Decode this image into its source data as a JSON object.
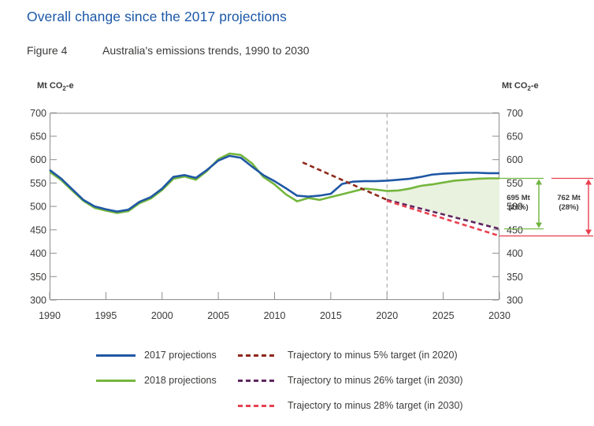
{
  "header": {
    "title": "Overall change since the 2017 projections",
    "figure_label": "Figure 4",
    "figure_title": "Australia's emissions trends, 1990 to 2030"
  },
  "axis_unit": {
    "prefix": "Mt CO",
    "sub": "2",
    "suffix": "-e"
  },
  "chart_data": {
    "type": "line",
    "title": "Australia's emissions trends, 1990 to 2030",
    "xlim": [
      1990,
      2030
    ],
    "ylim": [
      300,
      700
    ],
    "x_ticks": [
      1990,
      1995,
      2000,
      2005,
      2010,
      2015,
      2020,
      2025,
      2030
    ],
    "y_ticks": [
      700,
      650,
      600,
      550,
      500,
      450,
      400,
      350,
      300
    ],
    "y_unit": "Mt CO2-e",
    "grid": false,
    "reference_line": {
      "x": 2020,
      "style": "dashed",
      "color": "#9b9b9b"
    },
    "series": [
      {
        "name": "2017 projections",
        "style": "solid",
        "color": "#1f57a4",
        "x": [
          1990,
          1991,
          1992,
          1993,
          1994,
          1995,
          1996,
          1997,
          1998,
          1999,
          2000,
          2001,
          2002,
          2003,
          2004,
          2005,
          2006,
          2007,
          2008,
          2009,
          2010,
          2011,
          2012,
          2013,
          2014,
          2015,
          2016,
          2017,
          2018,
          2019,
          2020,
          2021,
          2022,
          2023,
          2024,
          2025,
          2026,
          2027,
          2028,
          2029,
          2030
        ],
        "values": [
          578,
          560,
          537,
          514,
          500,
          494,
          489,
          493,
          510,
          520,
          538,
          563,
          567,
          561,
          578,
          598,
          608,
          604,
          585,
          567,
          554,
          539,
          523,
          521,
          523,
          527,
          548,
          553,
          554,
          554,
          555,
          557,
          559,
          563,
          568,
          570,
          571,
          572,
          572,
          571,
          571
        ]
      },
      {
        "name": "2018 projections",
        "style": "solid",
        "color": "#74b63c",
        "x": [
          1990,
          1991,
          1992,
          1993,
          1994,
          1995,
          1996,
          1997,
          1998,
          1999,
          2000,
          2001,
          2002,
          2003,
          2004,
          2005,
          2006,
          2007,
          2008,
          2009,
          2010,
          2011,
          2012,
          2013,
          2014,
          2015,
          2016,
          2017,
          2018,
          2019,
          2020,
          2021,
          2022,
          2023,
          2024,
          2025,
          2026,
          2027,
          2028,
          2029,
          2030
        ],
        "values": [
          574,
          557,
          534,
          512,
          497,
          491,
          486,
          490,
          507,
          517,
          535,
          559,
          564,
          557,
          576,
          601,
          613,
          610,
          592,
          563,
          547,
          526,
          511,
          518,
          514,
          520,
          526,
          532,
          538,
          536,
          533,
          534,
          538,
          544,
          547,
          551,
          555,
          557,
          559,
          560,
          560
        ]
      },
      {
        "name": "Trajectory to minus 5% target (in 2020)",
        "style": "dashed",
        "color": "#8e2a1c",
        "x": [
          2012.5,
          2020
        ],
        "values": [
          594,
          514
        ]
      },
      {
        "name": "Trajectory to minus 26% target (in 2030)",
        "style": "dashed",
        "color": "#5f2760",
        "x": [
          2020,
          2030
        ],
        "values": [
          514,
          452
        ]
      },
      {
        "name": "Trajectory to minus 28% target (in 2030)",
        "style": "dashed",
        "color": "#e8404f",
        "x": [
          2020,
          2030
        ],
        "values": [
          512,
          437
        ]
      }
    ],
    "shaded_area": {
      "between": [
        "2018 projections",
        "Trajectory to minus 26% target (in 2030)"
      ],
      "from_x": 2020,
      "to_x": 2030,
      "color": "#e9f1df"
    },
    "annotations": [
      {
        "text_line1": "695 Mt",
        "text_line2": "(26%)",
        "from_value": 560,
        "to_value": 452,
        "color": "#6fb43f"
      },
      {
        "text_line1": "762 Mt",
        "text_line2": "(28%)",
        "from_value": 560,
        "to_value": 437,
        "color": "#e8404f"
      }
    ],
    "legend_position": "bottom"
  },
  "legend": {
    "items": [
      {
        "series": 0,
        "label": "2017 projections"
      },
      {
        "series": 1,
        "label": "2018 projections"
      },
      {
        "series": 2,
        "label": "Trajectory to minus 5% target (in 2020)"
      },
      {
        "series": 3,
        "label": "Trajectory to minus 26% target (in 2030)"
      },
      {
        "series": 4,
        "label": "Trajectory to minus 28% target (in 2030)"
      }
    ]
  }
}
